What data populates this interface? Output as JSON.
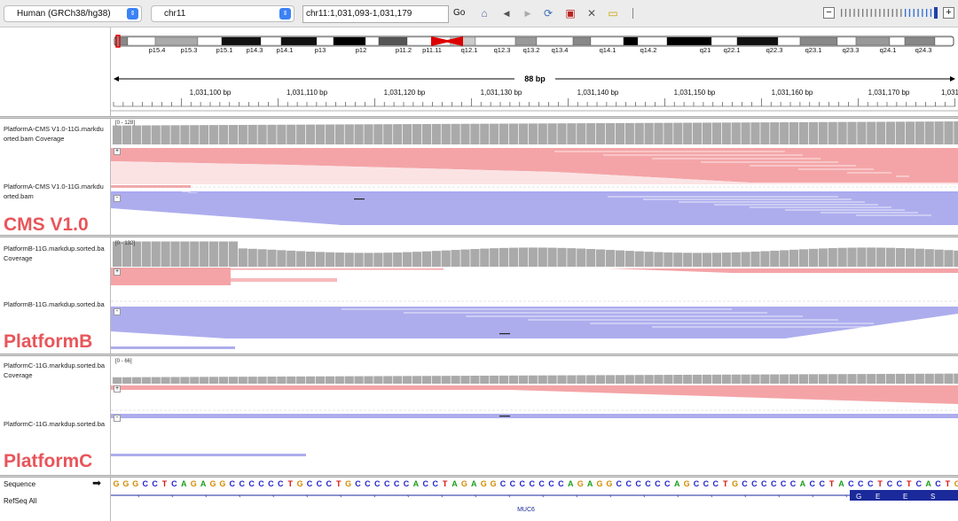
{
  "toolbar": {
    "genome": "Human (GRCh38/hg38)",
    "chromosome": "chr11",
    "locus": "chr11:1,031,093-1,031,179",
    "go_label": "Go"
  },
  "ideogram": {
    "bands": [
      "p15.4",
      "p15.3",
      "p15.1",
      "p14.3",
      "p14.1",
      "p13",
      "p12",
      "p11.2",
      "p11.11",
      "q12.1",
      "q12.3",
      "q13.2",
      "q13.4",
      "q14.1",
      "q14.2",
      "q21",
      "q22.1",
      "q22.3",
      "q23.1",
      "q23.3",
      "q24.1",
      "q24.3"
    ]
  },
  "ruler": {
    "width_label": "88 bp",
    "ticks": [
      "1,031,100 bp",
      "1,031,110 bp",
      "1,031,120 bp",
      "1,031,130 bp",
      "1,031,140 bp",
      "1,031,150 bp",
      "1,031,160 bp",
      "1,031,170 bp",
      "1,031"
    ]
  },
  "tracks": [
    {
      "coverage_label": "PlatformA-CMS V1.0-11G.markdu orted.bam Coverage",
      "reads_label": "PlatformA-CMS V1.0-11G.markdu orted.bam",
      "range": "[0 - 128]",
      "big_label": "CMS V1.0"
    },
    {
      "coverage_label": "PlatformB-11G.markdup.sorted.ba Coverage",
      "reads_label": "PlatformB-11G.markdup.sorted.ba",
      "range": "[0 - 132]",
      "big_label": "PlatformB"
    },
    {
      "coverage_label": "PlatformC-11G.markdup.sorted.ba Coverage",
      "reads_label": "PlatformC-11G.markdup.sorted.ba",
      "range": "[0 - 66]",
      "big_label": "PlatformC"
    }
  ],
  "strand": {
    "plus": "+",
    "minus": "-"
  },
  "sequence": {
    "label": "Sequence",
    "bases": "GGGCCTCAGAGGCCCCCCTGCCCTGCCCCCCACCTAGAGGCCCCCCCAGAGGCCCCCCAGCCCTGCCCCCCACCTACCCTCCTCACTG",
    "colors": {
      "G": "#d18b00",
      "C": "#2222cc",
      "T": "#d11",
      "A": "#1a9e1a"
    }
  },
  "refseq": {
    "label": "RefSeq All",
    "gene": "MUC6",
    "exon_letters": [
      "G",
      "E",
      "E",
      "S"
    ]
  }
}
